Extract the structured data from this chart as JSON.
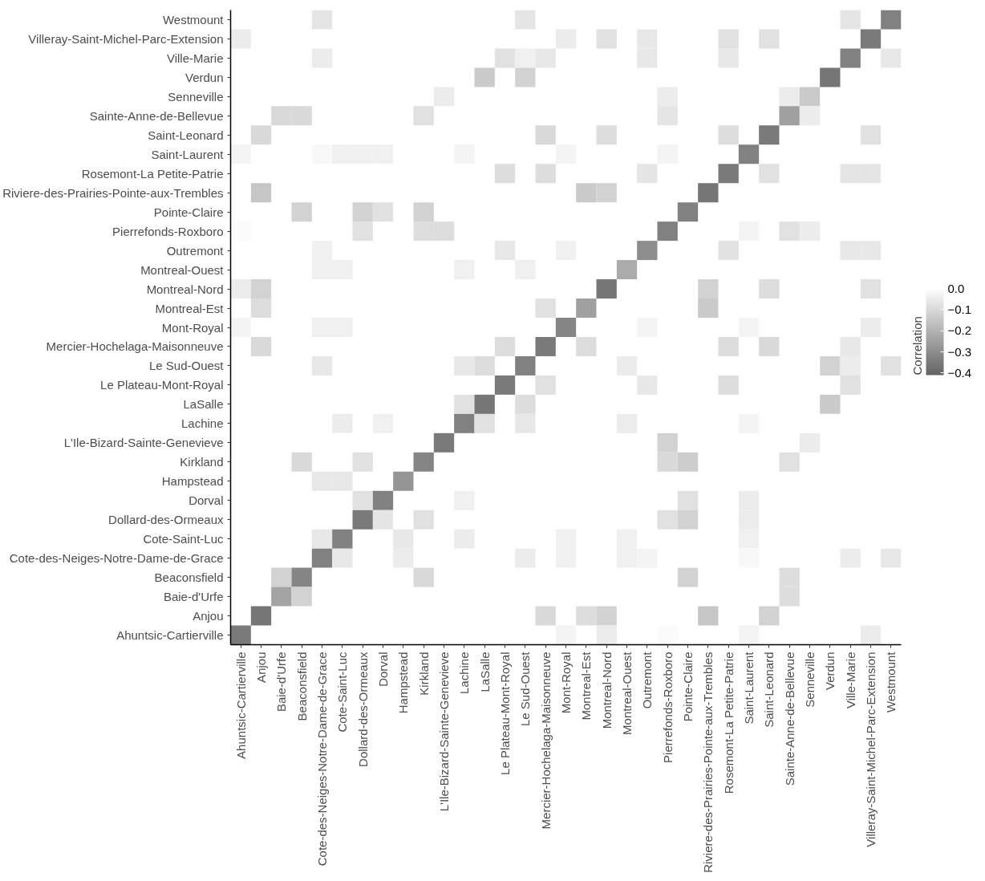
{
  "chart_data": {
    "type": "heatmap",
    "legend_title": "Correlation",
    "categories": [
      "Ahuntsic-Cartierville",
      "Anjou",
      "Baie-d'Urfe",
      "Beaconsfield",
      "Cote-des-Neiges-Notre-Dame-de-Grace",
      "Cote-Saint-Luc",
      "Dollard-des-Ormeaux",
      "Dorval",
      "Hampstead",
      "Kirkland",
      "L'Ile-Bizard-Sainte-Genevieve",
      "Lachine",
      "LaSalle",
      "Le Plateau-Mont-Royal",
      "Le Sud-Ouest",
      "Mercier-Hochelaga-Maisonneuve",
      "Mont-Royal",
      "Montreal-Est",
      "Montreal-Nord",
      "Montreal-Ouest",
      "Outremont",
      "Pierrefonds-Roxboro",
      "Pointe-Claire",
      "Riviere-des-Prairies-Pointe-aux-Trembles",
      "Rosemont-La Petite-Patrie",
      "Saint-Laurent",
      "Saint-Leonard",
      "Sainte-Anne-de-Bellevue",
      "Senneville",
      "Verdun",
      "Ville-Marie",
      "Villeray-Saint-Michel-Parc-Extension",
      "Westmount"
    ],
    "y_categories": [
      "Westmount",
      "Villeray-Saint-Michel-Parc-Extension",
      "Ville-Marie",
      "Verdun",
      "Senneville",
      "Sainte-Anne-de-Bellevue",
      "Saint-Leonard",
      "Saint-Laurent",
      "Rosemont-La Petite-Patrie",
      "Riviere-des-Prairies-Pointe-aux-Trembles",
      "Pointe-Claire",
      "Pierrefonds-Roxboro",
      "Outremont",
      "Montreal-Ouest",
      "Montreal-Nord",
      "Montreal-Est",
      "Mont-Royal",
      "Mercier-Hochelaga-Maisonneuve",
      "Le Sud-Ouest",
      "Le Plateau-Mont-Royal",
      "LaSalle",
      "Lachine",
      "L'Ile-Bizard-Sainte-Genevieve",
      "Kirkland",
      "Hampstead",
      "Dorval",
      "Dollard-des-Ormeaux",
      "Cote-Saint-Luc",
      "Cote-des-Neiges-Notre-Dame-de-Grace",
      "Beaconsfield",
      "Baie-d'Urfe",
      "Anjou",
      "Ahuntsic-Cartierville"
    ],
    "cells": [
      [
        null,
        null,
        null,
        null,
        -0.07,
        null,
        null,
        null,
        null,
        null,
        null,
        null,
        null,
        null,
        -0.07,
        null,
        null,
        null,
        null,
        null,
        null,
        null,
        null,
        null,
        null,
        null,
        null,
        null,
        null,
        null,
        -0.07,
        null,
        -0.33
      ],
      [
        -0.05,
        null,
        null,
        null,
        null,
        null,
        null,
        null,
        null,
        null,
        null,
        null,
        null,
        null,
        null,
        null,
        -0.05,
        null,
        -0.08,
        null,
        -0.06,
        null,
        null,
        null,
        -0.08,
        null,
        -0.08,
        null,
        null,
        null,
        null,
        -0.35,
        null
      ],
      [
        null,
        null,
        null,
        null,
        -0.05,
        null,
        null,
        null,
        null,
        null,
        null,
        null,
        null,
        -0.08,
        -0.04,
        -0.06,
        null,
        null,
        null,
        null,
        -0.06,
        null,
        null,
        null,
        -0.06,
        null,
        null,
        null,
        null,
        null,
        -0.33,
        null,
        -0.06
      ],
      [
        null,
        null,
        null,
        null,
        null,
        null,
        null,
        null,
        null,
        null,
        null,
        null,
        -0.14,
        null,
        -0.12,
        null,
        null,
        null,
        null,
        null,
        null,
        null,
        null,
        null,
        null,
        null,
        null,
        null,
        null,
        -0.36,
        null,
        null,
        null
      ],
      [
        null,
        null,
        null,
        null,
        null,
        null,
        null,
        null,
        null,
        null,
        -0.05,
        null,
        null,
        null,
        null,
        null,
        null,
        null,
        null,
        null,
        null,
        -0.05,
        null,
        null,
        null,
        null,
        null,
        -0.05,
        -0.14,
        null,
        null,
        null,
        null
      ],
      [
        null,
        null,
        -0.1,
        -0.1,
        null,
        null,
        null,
        null,
        null,
        -0.08,
        null,
        null,
        null,
        null,
        null,
        null,
        null,
        null,
        null,
        null,
        null,
        -0.07,
        null,
        null,
        null,
        null,
        null,
        -0.25,
        -0.05,
        null,
        null,
        null,
        null
      ],
      [
        null,
        -0.1,
        null,
        null,
        null,
        null,
        null,
        null,
        null,
        null,
        null,
        null,
        null,
        null,
        null,
        -0.1,
        null,
        null,
        -0.09,
        null,
        null,
        null,
        null,
        null,
        -0.09,
        null,
        -0.35,
        null,
        null,
        null,
        null,
        -0.08,
        null
      ],
      [
        -0.03,
        null,
        null,
        null,
        -0.02,
        -0.04,
        -0.04,
        -0.04,
        null,
        null,
        null,
        -0.03,
        null,
        null,
        null,
        null,
        -0.03,
        null,
        null,
        null,
        null,
        -0.03,
        null,
        null,
        null,
        -0.33,
        null,
        null,
        null,
        null,
        null,
        null,
        null
      ],
      [
        null,
        null,
        null,
        null,
        null,
        null,
        null,
        null,
        null,
        null,
        null,
        null,
        null,
        -0.09,
        null,
        -0.09,
        null,
        null,
        null,
        null,
        -0.07,
        null,
        null,
        null,
        -0.35,
        null,
        -0.08,
        null,
        null,
        null,
        -0.07,
        -0.07,
        null
      ],
      [
        null,
        -0.15,
        null,
        null,
        null,
        null,
        null,
        null,
        null,
        null,
        null,
        null,
        null,
        null,
        null,
        null,
        null,
        -0.14,
        -0.12,
        null,
        null,
        null,
        null,
        -0.36,
        null,
        null,
        null,
        null,
        null,
        null,
        null,
        null,
        null
      ],
      [
        null,
        null,
        null,
        -0.12,
        null,
        null,
        -0.12,
        -0.08,
        null,
        -0.12,
        null,
        null,
        null,
        null,
        null,
        null,
        null,
        null,
        null,
        null,
        null,
        null,
        -0.33,
        null,
        null,
        null,
        null,
        null,
        null,
        null,
        null,
        null,
        null
      ],
      [
        -0.01,
        null,
        null,
        null,
        null,
        null,
        -0.08,
        null,
        null,
        -0.09,
        -0.09,
        null,
        null,
        null,
        null,
        null,
        null,
        null,
        null,
        null,
        null,
        -0.33,
        null,
        null,
        null,
        -0.03,
        null,
        -0.08,
        -0.05,
        null,
        null,
        null,
        null
      ],
      [
        null,
        null,
        null,
        null,
        -0.04,
        null,
        null,
        null,
        null,
        null,
        null,
        null,
        null,
        -0.06,
        null,
        null,
        -0.04,
        null,
        null,
        null,
        -0.3,
        null,
        null,
        null,
        -0.08,
        null,
        null,
        null,
        null,
        null,
        -0.06,
        -0.06,
        null
      ],
      [
        null,
        null,
        null,
        null,
        -0.04,
        -0.04,
        null,
        null,
        null,
        null,
        null,
        -0.04,
        null,
        null,
        -0.04,
        null,
        null,
        null,
        null,
        -0.22,
        null,
        null,
        null,
        null,
        null,
        null,
        null,
        null,
        null,
        null,
        null,
        null,
        null
      ],
      [
        -0.05,
        -0.12,
        null,
        null,
        null,
        null,
        null,
        null,
        null,
        null,
        null,
        null,
        null,
        null,
        null,
        null,
        null,
        null,
        -0.36,
        null,
        null,
        null,
        null,
        -0.12,
        null,
        null,
        -0.09,
        null,
        null,
        null,
        null,
        -0.08,
        null
      ],
      [
        null,
        -0.09,
        null,
        null,
        null,
        null,
        null,
        null,
        null,
        null,
        null,
        null,
        null,
        null,
        null,
        -0.08,
        null,
        -0.25,
        null,
        null,
        null,
        null,
        null,
        -0.14,
        null,
        null,
        null,
        null,
        null,
        null,
        null,
        null,
        null
      ],
      [
        -0.03,
        null,
        null,
        null,
        -0.04,
        -0.04,
        null,
        null,
        null,
        null,
        null,
        null,
        null,
        null,
        null,
        null,
        -0.32,
        null,
        null,
        null,
        -0.03,
        null,
        null,
        null,
        null,
        -0.03,
        null,
        null,
        null,
        null,
        null,
        -0.05,
        null
      ],
      [
        null,
        -0.1,
        null,
        null,
        null,
        null,
        null,
        null,
        null,
        null,
        null,
        null,
        null,
        -0.09,
        null,
        -0.35,
        null,
        -0.09,
        null,
        null,
        null,
        null,
        null,
        null,
        -0.09,
        null,
        -0.1,
        null,
        null,
        null,
        -0.06,
        null,
        null
      ],
      [
        null,
        null,
        null,
        null,
        -0.06,
        null,
        null,
        null,
        null,
        null,
        null,
        -0.06,
        -0.09,
        null,
        -0.33,
        null,
        null,
        null,
        null,
        -0.05,
        null,
        null,
        null,
        null,
        null,
        null,
        null,
        null,
        null,
        -0.12,
        -0.05,
        null,
        -0.08
      ],
      [
        null,
        null,
        null,
        null,
        null,
        null,
        null,
        null,
        null,
        null,
        null,
        null,
        null,
        -0.35,
        null,
        -0.08,
        null,
        null,
        null,
        null,
        -0.06,
        null,
        null,
        null,
        -0.09,
        null,
        null,
        null,
        null,
        null,
        -0.08,
        null,
        null
      ],
      [
        null,
        null,
        null,
        null,
        null,
        null,
        null,
        null,
        null,
        null,
        null,
        -0.08,
        -0.36,
        null,
        -0.09,
        null,
        null,
        null,
        null,
        null,
        null,
        null,
        null,
        null,
        null,
        null,
        null,
        null,
        null,
        -0.14,
        null,
        null,
        null
      ],
      [
        null,
        null,
        null,
        null,
        null,
        -0.05,
        null,
        -0.04,
        null,
        null,
        null,
        -0.33,
        -0.08,
        null,
        -0.06,
        null,
        null,
        null,
        null,
        -0.05,
        null,
        null,
        null,
        null,
        null,
        -0.03,
        null,
        null,
        null,
        null,
        null,
        null,
        null
      ],
      [
        null,
        null,
        null,
        null,
        null,
        null,
        null,
        null,
        null,
        null,
        -0.35,
        null,
        null,
        null,
        null,
        null,
        null,
        null,
        null,
        null,
        null,
        -0.12,
        null,
        null,
        null,
        null,
        null,
        null,
        -0.05,
        null,
        null,
        null,
        null
      ],
      [
        null,
        null,
        null,
        -0.1,
        null,
        null,
        -0.08,
        null,
        null,
        -0.32,
        null,
        null,
        null,
        null,
        null,
        null,
        null,
        null,
        null,
        null,
        null,
        -0.1,
        -0.13,
        null,
        null,
        null,
        null,
        -0.08,
        null,
        null,
        null,
        null,
        null
      ],
      [
        null,
        null,
        null,
        null,
        -0.06,
        -0.06,
        null,
        null,
        -0.28,
        null,
        null,
        null,
        null,
        null,
        null,
        null,
        null,
        null,
        null,
        null,
        null,
        null,
        null,
        null,
        null,
        null,
        null,
        null,
        null,
        null,
        null,
        null,
        null
      ],
      [
        null,
        null,
        null,
        null,
        null,
        null,
        -0.08,
        -0.33,
        null,
        null,
        null,
        -0.04,
        null,
        null,
        null,
        null,
        null,
        null,
        null,
        null,
        null,
        null,
        -0.08,
        null,
        null,
        -0.05,
        null,
        null,
        null,
        null,
        null,
        null,
        null
      ],
      [
        null,
        null,
        null,
        null,
        null,
        null,
        -0.35,
        -0.07,
        null,
        -0.08,
        null,
        null,
        null,
        null,
        null,
        null,
        null,
        null,
        null,
        null,
        null,
        -0.08,
        -0.12,
        null,
        null,
        -0.05,
        null,
        null,
        null,
        null,
        null,
        null,
        null
      ],
      [
        null,
        null,
        null,
        null,
        -0.06,
        -0.33,
        null,
        null,
        -0.06,
        null,
        null,
        -0.05,
        null,
        null,
        null,
        null,
        -0.04,
        null,
        null,
        -0.04,
        null,
        null,
        null,
        null,
        null,
        -0.04,
        null,
        null,
        null,
        null,
        null,
        null,
        null
      ],
      [
        null,
        null,
        null,
        null,
        -0.33,
        -0.06,
        null,
        null,
        -0.05,
        null,
        null,
        null,
        null,
        null,
        -0.05,
        null,
        -0.04,
        null,
        null,
        -0.04,
        -0.03,
        null,
        null,
        null,
        null,
        -0.02,
        null,
        null,
        null,
        null,
        -0.05,
        null,
        -0.06
      ],
      [
        null,
        null,
        -0.12,
        -0.32,
        null,
        null,
        null,
        null,
        null,
        -0.1,
        null,
        null,
        null,
        null,
        null,
        null,
        null,
        null,
        null,
        null,
        null,
        null,
        -0.12,
        null,
        null,
        null,
        null,
        -0.09,
        null,
        null,
        null,
        null,
        null
      ],
      [
        null,
        null,
        -0.24,
        -0.12,
        null,
        null,
        null,
        null,
        null,
        null,
        null,
        null,
        null,
        null,
        null,
        null,
        null,
        null,
        null,
        null,
        null,
        null,
        null,
        null,
        null,
        null,
        null,
        -0.09,
        null,
        null,
        null,
        null,
        null
      ],
      [
        null,
        -0.36,
        null,
        null,
        null,
        null,
        null,
        null,
        null,
        null,
        null,
        null,
        null,
        null,
        null,
        -0.1,
        null,
        -0.09,
        -0.12,
        null,
        null,
        null,
        null,
        -0.15,
        null,
        null,
        -0.12,
        null,
        null,
        null,
        null,
        null,
        null
      ],
      [
        -0.35,
        null,
        null,
        null,
        null,
        null,
        null,
        null,
        null,
        null,
        null,
        null,
        null,
        null,
        null,
        null,
        -0.03,
        null,
        -0.05,
        null,
        null,
        -0.01,
        null,
        null,
        null,
        -0.03,
        null,
        null,
        null,
        null,
        null,
        -0.05,
        null
      ]
    ],
    "clim": [
      -0.41,
      0
    ],
    "cticks": [
      {
        "value": 0,
        "label": "0.0"
      },
      {
        "value": -0.1,
        "label": "−0.1"
      },
      {
        "value": -0.2,
        "label": "−0.2"
      },
      {
        "value": -0.3,
        "label": "−0.3"
      },
      {
        "value": -0.4,
        "label": "−0.4"
      }
    ]
  }
}
